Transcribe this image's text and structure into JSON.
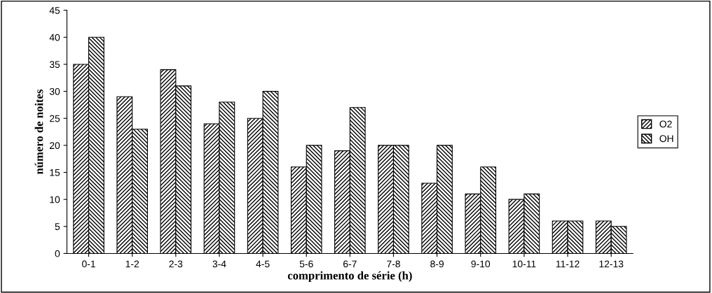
{
  "chart_data": {
    "type": "bar",
    "xlabel": "comprimento de série (h)",
    "ylabel": "número de noites",
    "categories": [
      "0-1",
      "1-2",
      "2-3",
      "3-4",
      "4-5",
      "5-6",
      "6-7",
      "7-8",
      "8-9",
      "9-10",
      "10-11",
      "11-12",
      "12-13"
    ],
    "series": [
      {
        "name": "O2",
        "color": "#000000",
        "values": [
          35,
          29,
          34,
          24,
          25,
          16,
          19,
          20,
          13,
          11,
          10,
          6,
          6
        ]
      },
      {
        "name": "OH",
        "color": "#000000",
        "values": [
          40,
          23,
          31,
          28,
          30,
          20,
          27,
          20,
          20,
          16,
          11,
          6,
          5
        ]
      }
    ],
    "ylim": [
      0,
      45
    ],
    "yticks": [
      0,
      5,
      10,
      15,
      20,
      25,
      30,
      35,
      40,
      45
    ],
    "grid": false,
    "legend": "right"
  }
}
